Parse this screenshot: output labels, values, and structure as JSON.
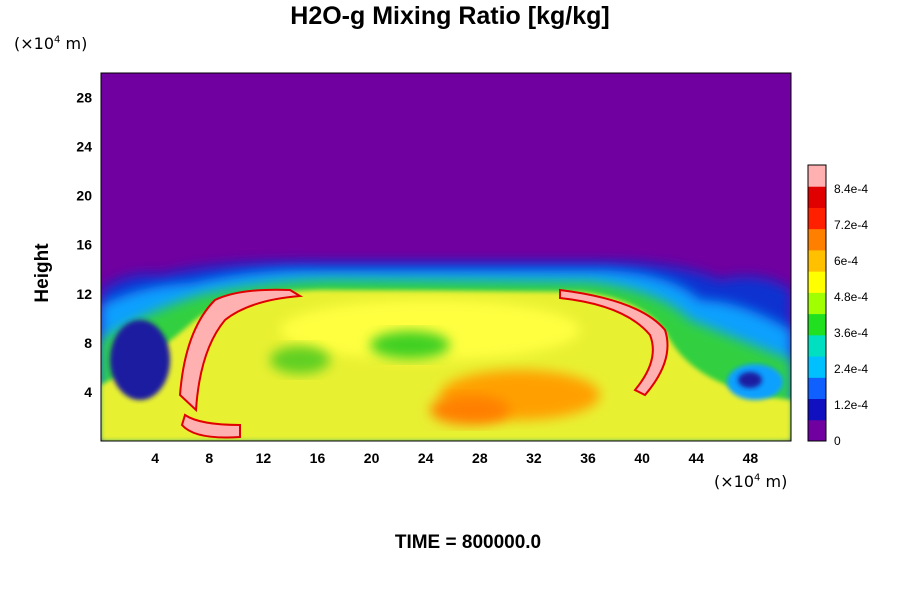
{
  "chart_data": {
    "type": "heatmap",
    "title": "H2O-g Mixing Ratio [kg/kg]",
    "ylabel": "Height",
    "x_unit_base": "(×10",
    "x_unit_exp": "4",
    "x_unit_tail": " m)",
    "y_unit_base": "(×10",
    "y_unit_exp": "4",
    "y_unit_tail": " m)",
    "x_ticks": [
      "4",
      "8",
      "12",
      "16",
      "20",
      "24",
      "28",
      "32",
      "36",
      "40",
      "44",
      "48"
    ],
    "x_tick_values": [
      4,
      8,
      12,
      16,
      20,
      24,
      28,
      32,
      36,
      40,
      44,
      48
    ],
    "y_ticks": [
      "4",
      "8",
      "12",
      "16",
      "20",
      "24",
      "28"
    ],
    "y_tick_values": [
      4,
      8,
      12,
      16,
      20,
      24,
      28
    ],
    "xlim": [
      0,
      51
    ],
    "ylim": [
      0,
      30
    ],
    "colorbar": {
      "min": 0,
      "max": 0.00092,
      "labels": [
        "0",
        "1.2e-4",
        "2.4e-4",
        "3.6e-4",
        "4.8e-4",
        "6e-4",
        "7.2e-4",
        "8.4e-4"
      ],
      "label_values": [
        0,
        0.00012,
        0.00024,
        0.00036,
        0.00048,
        0.0006,
        0.00072,
        0.00084
      ],
      "colors": [
        "#7000a0",
        "#1010c0",
        "#1060ff",
        "#00c0ff",
        "#00e0c0",
        "#20e020",
        "#a0ff00",
        "#ffff00",
        "#ffc000",
        "#ff8000",
        "#ff2000",
        "#e00000",
        "#ffb0b0"
      ]
    },
    "time_label": "TIME = 800000.0"
  }
}
